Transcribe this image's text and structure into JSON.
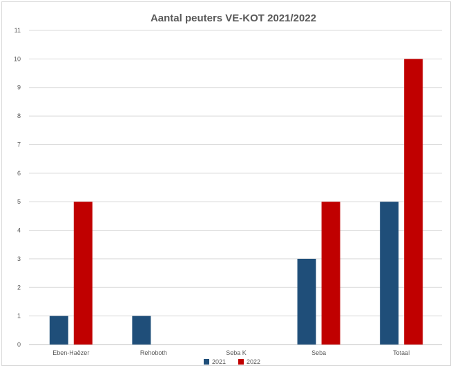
{
  "chart_data": {
    "type": "bar",
    "title": "Aantal peuters VE-KOT 2021/2022",
    "xlabel": "",
    "ylabel": "",
    "categories": [
      "Eben-Haëzer",
      "Rehoboth",
      "Seba K",
      "Seba",
      "Totaal"
    ],
    "series": [
      {
        "name": "2021",
        "color": "#1f4e79",
        "values": [
          1,
          1,
          0,
          3,
          5
        ]
      },
      {
        "name": "2022",
        "color": "#c00000",
        "values": [
          5,
          0,
          0,
          5,
          10
        ]
      }
    ],
    "ylim": [
      0,
      11
    ],
    "yticks": [
      "0",
      "1",
      "2",
      "3",
      "4",
      "5",
      "6",
      "7",
      "8",
      "9",
      "10",
      "11"
    ],
    "grid": true,
    "legend_position": "bottom"
  }
}
